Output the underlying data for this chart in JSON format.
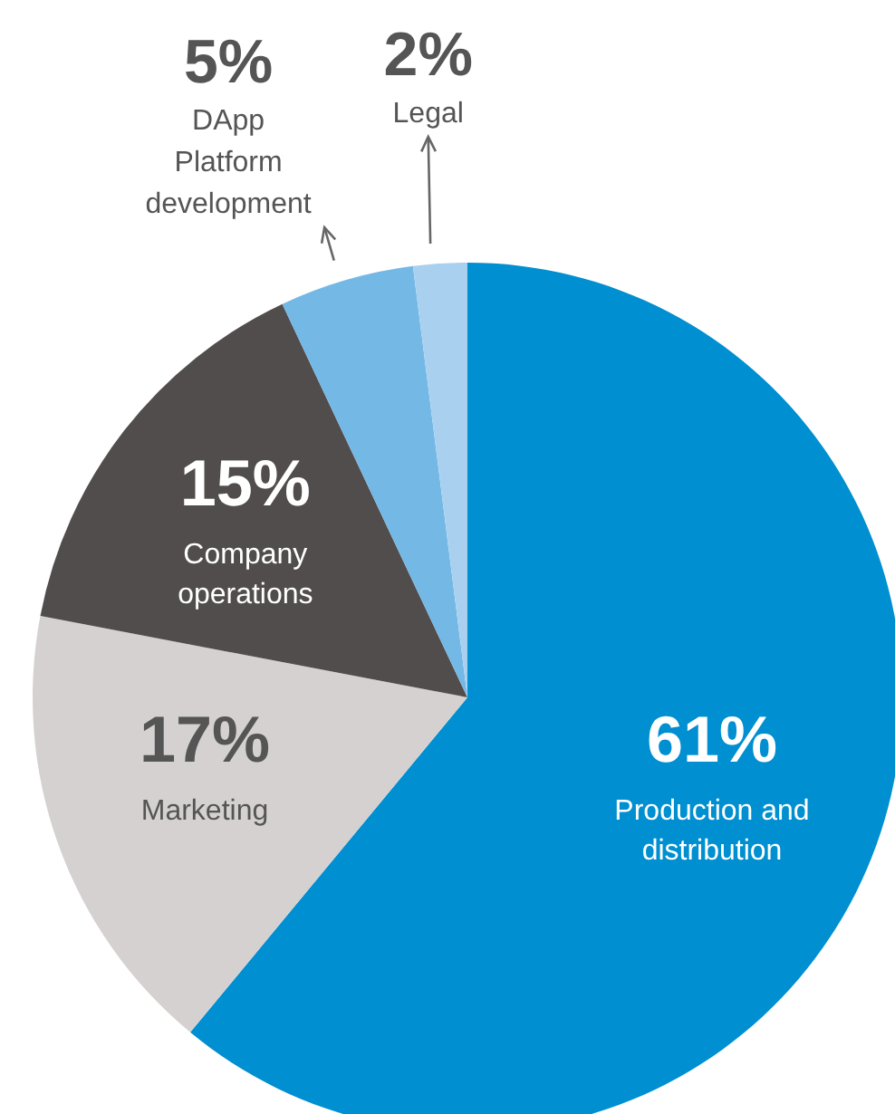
{
  "chart_data": {
    "type": "pie",
    "categories": [
      "Production and distribution",
      "Marketing",
      "Company operations",
      "DApp Platform development",
      "Legal"
    ],
    "values": [
      61,
      17,
      15,
      5,
      2
    ],
    "value_labels": [
      "61%",
      "17%",
      "15%",
      "5%",
      "2%"
    ],
    "colors": [
      "#008fd0",
      "#d6d1d1",
      "#524d4d",
      "#74b8e5",
      "#a9d1ef"
    ],
    "legend": false
  }
}
